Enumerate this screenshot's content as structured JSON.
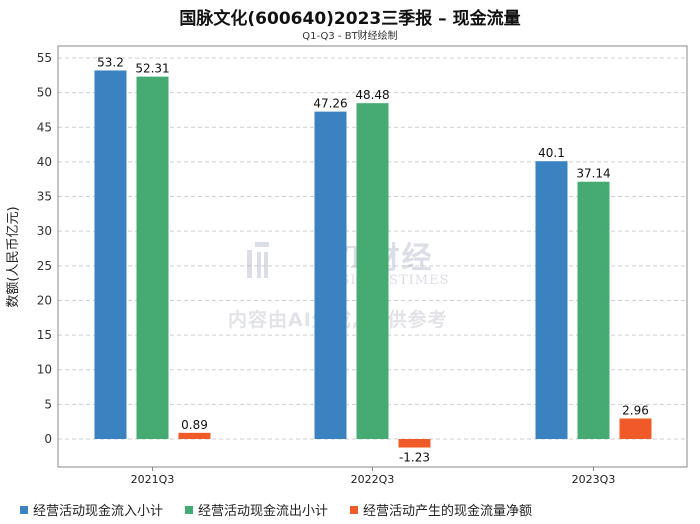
{
  "chart_data": {
    "type": "bar",
    "title": "国脉文化(600640)2023三季报 – 现金流量",
    "subtitle": "Q1-Q3 - BT财经绘制",
    "xlabel": "",
    "ylabel": "数额(人民币亿元)",
    "ylim": [
      -4,
      55
    ],
    "yticks": [
      0,
      5,
      10,
      15,
      20,
      25,
      30,
      35,
      40,
      45,
      50,
      55
    ],
    "grid": true,
    "legend_position": "bottom",
    "categories": [
      "2021Q3",
      "2022Q3",
      "2023Q3"
    ],
    "series": [
      {
        "name": "经营活动现金流入小计",
        "values": [
          53.2,
          47.26,
          40.1
        ],
        "labels": [
          "53.2",
          "47.26",
          "40.1"
        ],
        "color": "#3a83c0"
      },
      {
        "name": "经营活动现金流出小计",
        "values": [
          52.31,
          48.48,
          37.14
        ],
        "labels": [
          "52.31",
          "48.48",
          "37.14"
        ],
        "color": "#45ab72"
      },
      {
        "name": "经营活动产生的现金流量净额",
        "values": [
          0.89,
          -1.23,
          2.96
        ],
        "labels": [
          "0.89",
          "-1.23",
          "2.96"
        ],
        "color": "#f05a28"
      }
    ]
  },
  "watermark": {
    "logo_text": "BT财经",
    "logo_sub": "BUSINESSTIMES",
    "caption": "内容由AI生成, 仅供参考"
  }
}
